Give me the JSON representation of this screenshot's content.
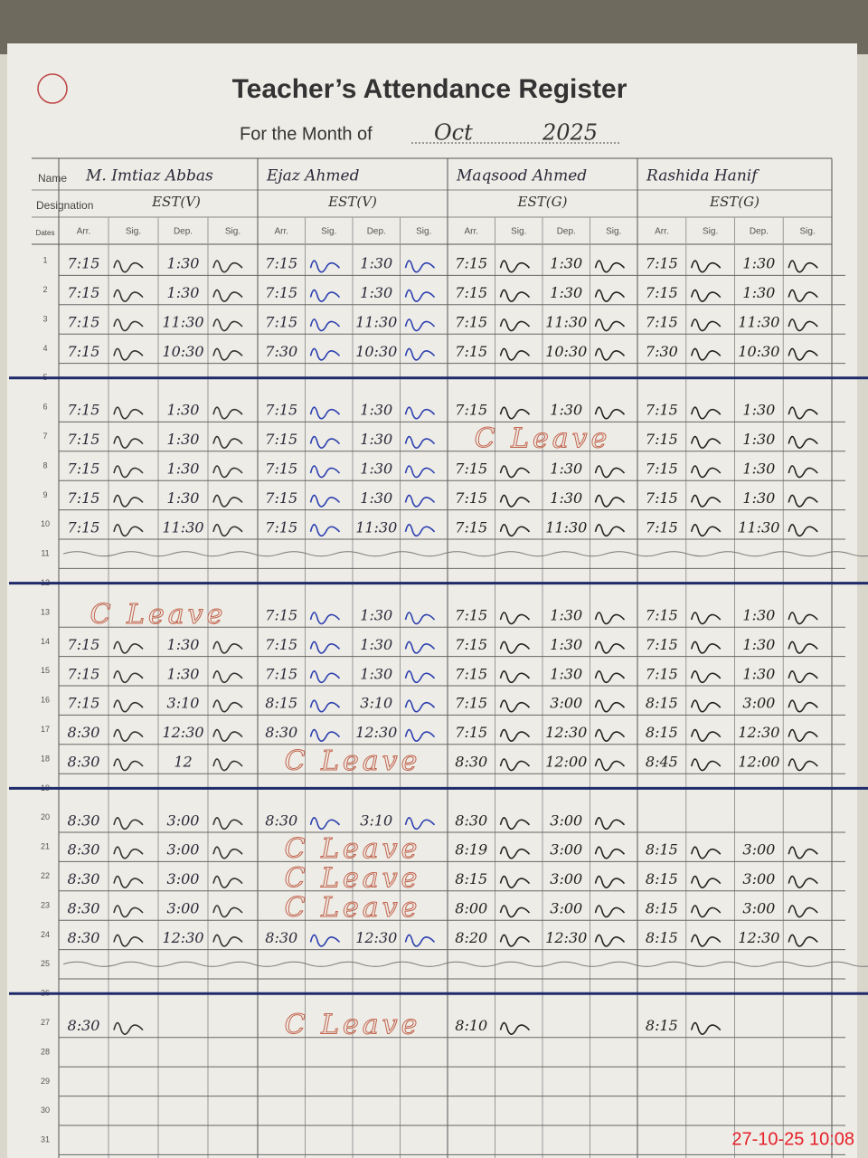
{
  "header": {
    "title": "Teacher’s Attendance Register",
    "month_label": "For the Month of",
    "month": "Oct",
    "year": "2025"
  },
  "labels": {
    "name": "Name",
    "designation": "Designation",
    "dates": "Dates"
  },
  "column_headers": [
    "Arr.",
    "Sig.",
    "Dep.",
    "Sig."
  ],
  "teachers": [
    {
      "name": "M. Imtiaz Abbas",
      "designation": "EST(V)"
    },
    {
      "name": "Ejaz Ahmed",
      "designation": "EST(V)"
    },
    {
      "name": "Maqsood Ahmed",
      "designation": "EST(G)"
    },
    {
      "name": "Rashida Hanif",
      "designation": "EST(G)"
    }
  ],
  "rows": [
    {
      "date": "1",
      "entries": [
        [
          "7:15",
          "1:30"
        ],
        [
          "7:15",
          "1:30"
        ],
        [
          "7:15",
          "1:30"
        ],
        [
          "7:15",
          "1:30"
        ]
      ]
    },
    {
      "date": "2",
      "entries": [
        [
          "7:15",
          "1:30"
        ],
        [
          "7:15",
          "1:30"
        ],
        [
          "7:15",
          "1:30"
        ],
        [
          "7:15",
          "1:30"
        ]
      ]
    },
    {
      "date": "3",
      "entries": [
        [
          "7:15",
          "11:30"
        ],
        [
          "7:15",
          "11:30"
        ],
        [
          "7:15",
          "11:30"
        ],
        [
          "7:15",
          "11:30"
        ]
      ]
    },
    {
      "date": "4",
      "entries": [
        [
          "7:15",
          "10:30"
        ],
        [
          "7:30",
          "10:30"
        ],
        [
          "7:15",
          "10:30"
        ],
        [
          "7:30",
          "10:30"
        ]
      ]
    },
    {
      "date": "5"
    },
    {
      "date": "6",
      "entries": [
        [
          "7:15",
          "1:30"
        ],
        [
          "7:15",
          "1:30"
        ],
        [
          "7:15",
          "1:30"
        ],
        [
          "7:15",
          "1:30"
        ]
      ]
    },
    {
      "date": "7",
      "entries": [
        [
          "7:15",
          "1:30"
        ],
        [
          "7:15",
          "1:30"
        ],
        "C Leave",
        [
          "7:15",
          "1:30"
        ]
      ]
    },
    {
      "date": "8",
      "entries": [
        [
          "7:15",
          "1:30"
        ],
        [
          "7:15",
          "1:30"
        ],
        [
          "7:15",
          "1:30"
        ],
        [
          "7:15",
          "1:30"
        ]
      ]
    },
    {
      "date": "9",
      "entries": [
        [
          "7:15",
          "1:30"
        ],
        [
          "7:15",
          "1:30"
        ],
        [
          "7:15",
          "1:30"
        ],
        [
          "7:15",
          "1:30"
        ]
      ]
    },
    {
      "date": "10",
      "entries": [
        [
          "7:15",
          "11:30"
        ],
        [
          "7:15",
          "11:30"
        ],
        [
          "7:15",
          "11:30"
        ],
        [
          "7:15",
          "11:30"
        ]
      ]
    },
    {
      "date": "11",
      "entries": [
        null,
        null,
        null,
        null
      ]
    },
    {
      "date": "12"
    },
    {
      "date": "13",
      "entries": [
        "C Leave",
        [
          "7:15",
          "1:30"
        ],
        [
          "7:15",
          "1:30"
        ],
        [
          "7:15",
          "1:30"
        ]
      ]
    },
    {
      "date": "14",
      "entries": [
        [
          "7:15",
          "1:30"
        ],
        [
          "7:15",
          "1:30"
        ],
        [
          "7:15",
          "1:30"
        ],
        [
          "7:15",
          "1:30"
        ]
      ]
    },
    {
      "date": "15",
      "entries": [
        [
          "7:15",
          "1:30"
        ],
        [
          "7:15",
          "1:30"
        ],
        [
          "7:15",
          "1:30"
        ],
        [
          "7:15",
          "1:30"
        ]
      ]
    },
    {
      "date": "16",
      "entries": [
        [
          "7:15",
          "3:10"
        ],
        [
          "8:15",
          "3:10"
        ],
        [
          "7:15",
          "3:00"
        ],
        [
          "8:15",
          "3:00"
        ]
      ]
    },
    {
      "date": "17",
      "entries": [
        [
          "8:30",
          "12:30"
        ],
        [
          "8:30",
          "12:30"
        ],
        [
          "7:15",
          "12:30"
        ],
        [
          "8:15",
          "12:30"
        ]
      ]
    },
    {
      "date": "18",
      "entries": [
        [
          "8:30",
          "12"
        ],
        "C Leave",
        [
          "8:30",
          "12:00"
        ],
        [
          "8:45",
          "12:00"
        ]
      ]
    },
    {
      "date": "19"
    },
    {
      "date": "20",
      "entries": [
        [
          "8:30",
          "3:00"
        ],
        [
          "8:30",
          "3:10"
        ],
        [
          "8:30",
          "3:00"
        ],
        null
      ]
    },
    {
      "date": "21",
      "entries": [
        [
          "8:30",
          "3:00"
        ],
        "C Leave",
        [
          "8:19",
          "3:00"
        ],
        [
          "8:15",
          "3:00"
        ]
      ]
    },
    {
      "date": "22",
      "entries": [
        [
          "8:30",
          "3:00"
        ],
        "C Leave",
        [
          "8:15",
          "3:00"
        ],
        [
          "8:15",
          "3:00"
        ]
      ]
    },
    {
      "date": "23",
      "entries": [
        [
          "8:30",
          "3:00"
        ],
        "C Leave",
        [
          "8:00",
          "3:00"
        ],
        [
          "8:15",
          "3:00"
        ]
      ]
    },
    {
      "date": "24",
      "entries": [
        [
          "8:30",
          "12:30"
        ],
        [
          "8:30",
          "12:30"
        ],
        [
          "8:20",
          "12:30"
        ],
        [
          "8:15",
          "12:30"
        ]
      ]
    },
    {
      "date": "25",
      "entries": [
        null,
        null,
        null,
        null
      ]
    },
    {
      "date": "26"
    },
    {
      "date": "27",
      "entries": [
        [
          "8:30",
          null
        ],
        "C Leave",
        [
          "8:10",
          null
        ],
        [
          "8:15",
          null
        ]
      ]
    },
    {
      "date": "28",
      "entries": [
        null,
        null,
        null,
        null
      ]
    },
    {
      "date": "29",
      "entries": [
        null,
        null,
        null,
        null
      ]
    },
    {
      "date": "30",
      "entries": [
        null,
        null,
        null,
        null
      ]
    },
    {
      "date": "31",
      "entries": [
        null,
        null,
        null,
        null
      ]
    }
  ],
  "timestamp": "27-10-25 10:08"
}
